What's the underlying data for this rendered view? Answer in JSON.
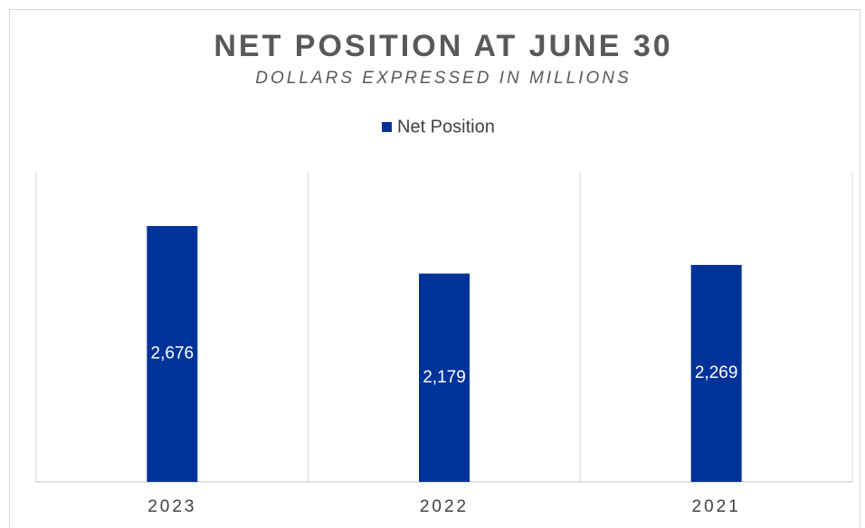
{
  "chart_data": {
    "type": "bar",
    "title": "NET POSITION AT JUNE 30",
    "subtitle": "DOLLARS EXPRESSED IN MILLIONS",
    "categories": [
      "2023",
      "2022",
      "2021"
    ],
    "series": [
      {
        "name": "Net Position",
        "color": "#003399",
        "values": [
          2676,
          2179,
          2269
        ],
        "value_labels": [
          "2,676",
          "2,179",
          "2,269"
        ]
      }
    ],
    "legend": "top"
  }
}
